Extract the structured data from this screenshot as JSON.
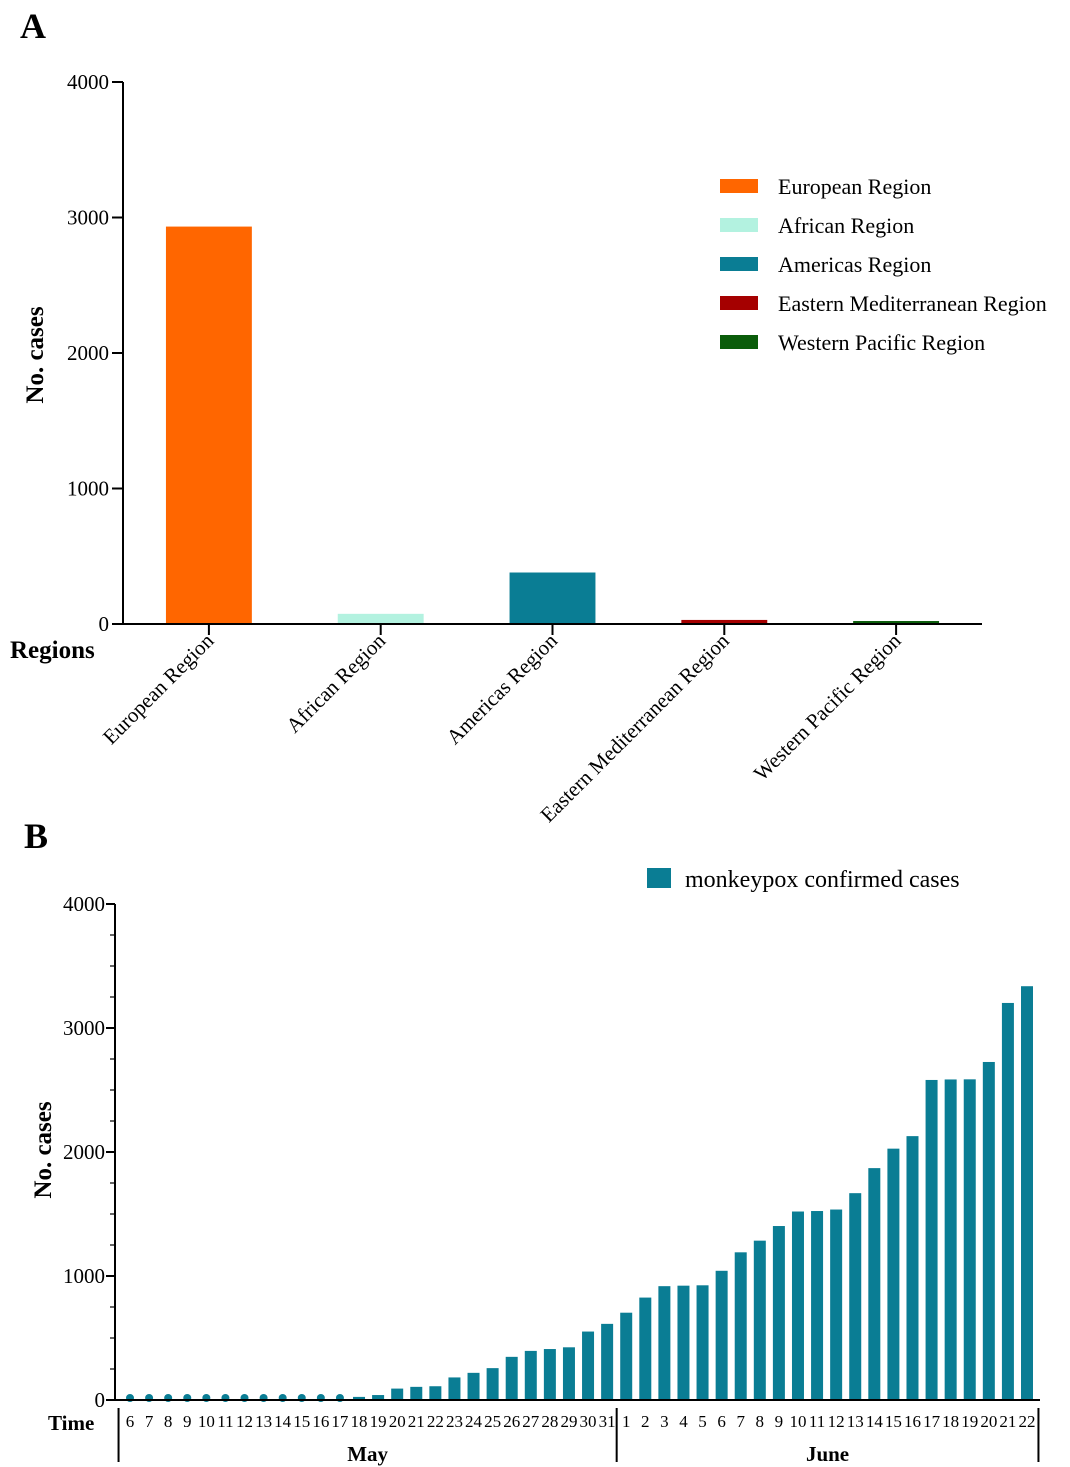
{
  "panels": {
    "a": {
      "label": "A"
    },
    "b": {
      "label": "B"
    }
  },
  "chart_data": [
    {
      "type": "bar",
      "panel": "A",
      "title": "",
      "xlabel": "Regions",
      "ylabel": "No. cases",
      "ylim": [
        0,
        4000
      ],
      "yticks": [
        "0",
        "1000",
        "2000",
        "3000",
        "4000"
      ],
      "categories": [
        "European Region",
        "African Region",
        "Americas Region",
        "Eastern Mediterranean Region",
        "Western Pacific Region"
      ],
      "values": [
        2933,
        75,
        380,
        30,
        22
      ],
      "colors": [
        "#ff6600",
        "#b3f2e0",
        "#0a7d94",
        "#a50000",
        "#0a5c0a"
      ],
      "legend": {
        "position": "top-right",
        "entries": [
          "European Region",
          "African Region",
          "Americas Region",
          "Eastern Mediterranean Region",
          "Western Pacific Region"
        ]
      },
      "grid": false
    },
    {
      "type": "bar",
      "panel": "B",
      "title": "",
      "xlabel": "Time",
      "ylabel": "No. cases",
      "ylim": [
        0,
        4000
      ],
      "yticks": [
        "0",
        "1000",
        "2000",
        "3000",
        "4000"
      ],
      "color": "#0a7d94",
      "legend": {
        "position": "top-right",
        "entries": [
          "monkeypox confirmed cases"
        ]
      },
      "grid": false,
      "months": [
        {
          "name": "May",
          "days": [
            "6",
            "7",
            "8",
            "9",
            "10",
            "11",
            "12",
            "13",
            "14",
            "15",
            "16",
            "17",
            "18",
            "19",
            "20",
            "21",
            "22",
            "23",
            "24",
            "25",
            "26",
            "27",
            "28",
            "29",
            "30",
            "31"
          ]
        },
        {
          "name": "June",
          "days": [
            "1",
            "2",
            "3",
            "4",
            "5",
            "6",
            "7",
            "8",
            "9",
            "10",
            "11",
            "12",
            "13",
            "14",
            "15",
            "16",
            "17",
            "18",
            "19",
            "20",
            "21",
            "22"
          ]
        }
      ],
      "series": [
        {
          "name": "monkeypox confirmed cases",
          "values": [
            1,
            1,
            1,
            1,
            1,
            1,
            1,
            1,
            1,
            1,
            5,
            12,
            25,
            40,
            92,
            106,
            111,
            182,
            219,
            257,
            348,
            396,
            411,
            425,
            552,
            614,
            704,
            826,
            918,
            922,
            925,
            1042,
            1191,
            1285,
            1403,
            1520,
            1524,
            1536,
            1668,
            1870,
            2027,
            2128,
            2581,
            2585,
            2586,
            2726,
            3202,
            3337
          ]
        }
      ]
    }
  ]
}
